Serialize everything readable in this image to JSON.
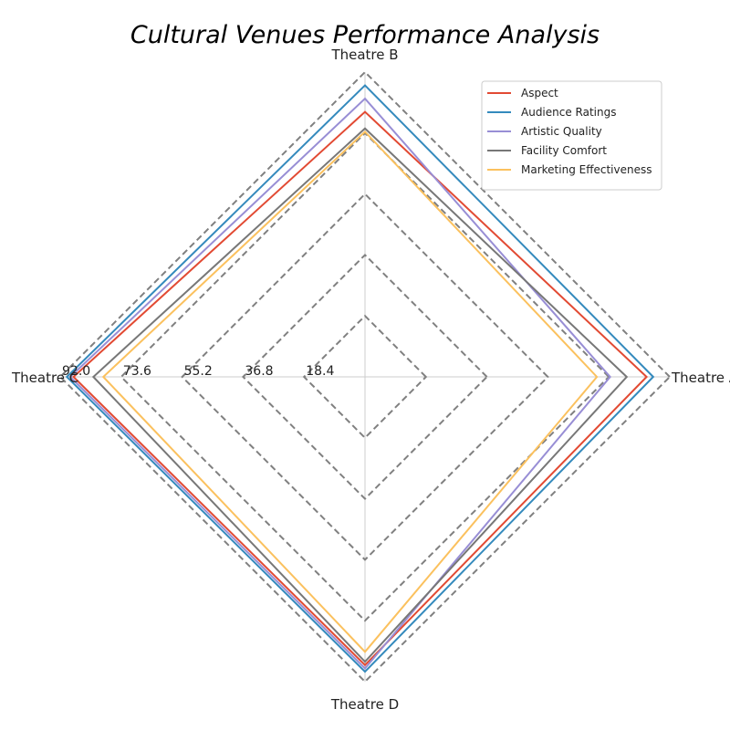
{
  "chart_data": {
    "type": "radar",
    "title": "Cultural Venues Performance Analysis",
    "axes": [
      "Theatre A",
      "Theatre B",
      "Theatre C",
      "Theatre D"
    ],
    "radial_ticks": [
      "18.4",
      "36.8",
      "55.2",
      "73.6",
      "92.0"
    ],
    "radial_tick_values": [
      18.4,
      36.8,
      55.2,
      73.6,
      92.0
    ],
    "rmax": 92.0,
    "grid": true,
    "legend_position": "top-right",
    "series": [
      {
        "name": "Aspect",
        "color": "#e24a33",
        "values": [
          85,
          80,
          88,
          87
        ]
      },
      {
        "name": "Audience Ratings",
        "color": "#348abd",
        "values": [
          87,
          88,
          90,
          89
        ]
      },
      {
        "name": "Artistic Quality",
        "color": "#988ed5",
        "values": [
          74,
          84,
          89,
          88
        ]
      },
      {
        "name": "Facility Comfort",
        "color": "#777777",
        "values": [
          79,
          75,
          82,
          86
        ]
      },
      {
        "name": "Marketing Effectiveness",
        "color": "#fbc15e",
        "values": [
          70,
          74,
          79,
          83
        ]
      }
    ]
  }
}
